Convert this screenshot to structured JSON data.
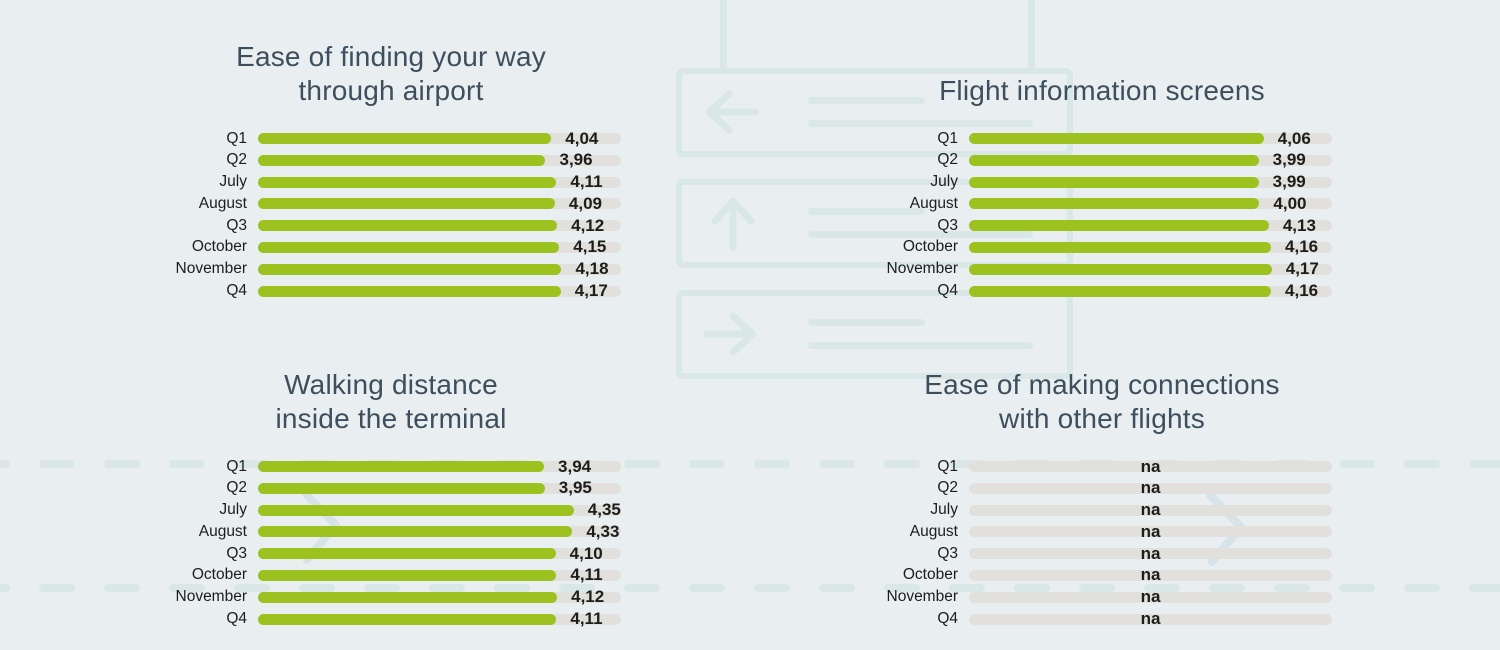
{
  "page": {
    "background_color": "#e9eef1",
    "decor_color": "#d9e8e6",
    "chevron_color": "#d6e3e8",
    "title_color": "#3d4e5c",
    "text_color": "#1d1d1b"
  },
  "decor": {
    "signs": [
      {
        "arrow": "left-arrow-icon"
      },
      {
        "arrow": "up-arrow-icon"
      },
      {
        "arrow": "right-arrow-icon"
      }
    ],
    "dashed_runway_lines": 2,
    "chevrons": 2
  },
  "chart_data": [
    {
      "type": "bar",
      "title": "Ease of finding your way through airport",
      "title_lines": [
        "Ease of finding your way",
        "through airport"
      ],
      "categories": [
        "Q1",
        "Q2",
        "July",
        "August",
        "Q3",
        "October",
        "November",
        "Q4"
      ],
      "values": [
        4.04,
        3.96,
        4.11,
        4.09,
        4.12,
        4.15,
        4.18,
        4.17
      ],
      "display_values": [
        "4,04",
        "3,96",
        "4,11",
        "4,09",
        "4,12",
        "4,15",
        "4,18",
        "4,17"
      ],
      "scale_max": 5,
      "bar_color": "#9bc21e",
      "track_color": "#e1e0dd"
    },
    {
      "type": "bar",
      "title": "Flight information screens",
      "title_lines": [
        "Flight information screens"
      ],
      "categories": [
        "Q1",
        "Q2",
        "July",
        "August",
        "Q3",
        "October",
        "November",
        "Q4"
      ],
      "values": [
        4.06,
        3.99,
        3.99,
        4.0,
        4.13,
        4.16,
        4.17,
        4.16
      ],
      "display_values": [
        "4,06",
        "3,99",
        "3,99",
        "4,00",
        "4,13",
        "4,16",
        "4,17",
        "4,16"
      ],
      "scale_max": 5,
      "bar_color": "#9bc21e",
      "track_color": "#e1e0dd"
    },
    {
      "type": "bar",
      "title": "Walking distance inside the terminal",
      "title_lines": [
        "Walking distance",
        "inside the terminal"
      ],
      "categories": [
        "Q1",
        "Q2",
        "July",
        "August",
        "Q3",
        "October",
        "November",
        "Q4"
      ],
      "values": [
        3.94,
        3.95,
        4.35,
        4.33,
        4.1,
        4.11,
        4.12,
        4.11
      ],
      "display_values": [
        "3,94",
        "3,95",
        "4,35",
        "4,33",
        "4,10",
        "4,11",
        "4,12",
        "4,11"
      ],
      "scale_max": 5,
      "bar_color": "#9bc21e",
      "track_color": "#e1e0dd"
    },
    {
      "type": "bar",
      "title": "Ease of making connections with other flights",
      "title_lines": [
        "Ease of making connections",
        "with other flights"
      ],
      "categories": [
        "Q1",
        "Q2",
        "July",
        "August",
        "Q3",
        "October",
        "November",
        "Q4"
      ],
      "values": [
        null,
        null,
        null,
        null,
        null,
        null,
        null,
        null
      ],
      "display_values": [
        "na",
        "na",
        "na",
        "na",
        "na",
        "na",
        "na",
        "na"
      ],
      "na_label": "na",
      "scale_max": 5,
      "bar_color": "#9bc21e",
      "track_color": "#e1e0dd"
    }
  ]
}
